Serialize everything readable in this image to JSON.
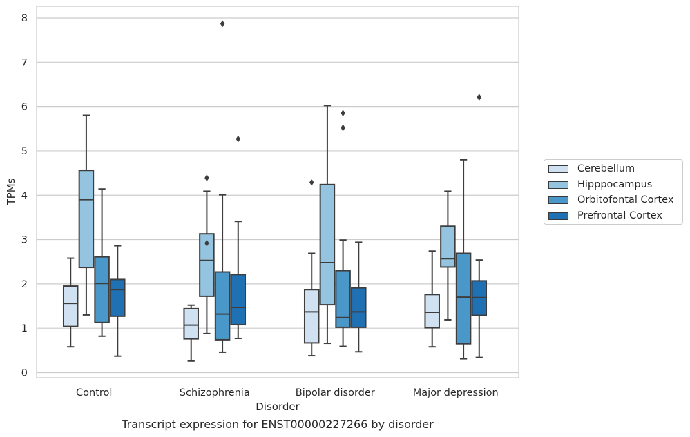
{
  "caption": "Transcript expression for ENST00000227266 by disorder",
  "chart_data": {
    "type": "box",
    "xlabel": "Disorder",
    "ylabel": "TPMs",
    "ylim": [
      -0.1,
      8.25
    ],
    "yticks": [
      0,
      1,
      2,
      3,
      4,
      5,
      6,
      7,
      8
    ],
    "grid": "horizontal",
    "legend_position": "right",
    "categories": [
      "Control",
      "Schizophrenia",
      "Bipolar disorder",
      "Major depression"
    ],
    "series": [
      {
        "name": "Cerebellum",
        "color": "#d0e1f2",
        "boxes": [
          {
            "whisker_low": 0.58,
            "q1": 1.04,
            "median": 1.56,
            "q3": 1.95,
            "whisker_high": 2.58,
            "outliers": []
          },
          {
            "whisker_low": 0.26,
            "q1": 0.76,
            "median": 1.07,
            "q3": 1.44,
            "whisker_high": 1.52,
            "outliers": []
          },
          {
            "whisker_low": 0.38,
            "q1": 0.67,
            "median": 1.37,
            "q3": 1.87,
            "whisker_high": 2.69,
            "outliers": [
              4.29
            ]
          },
          {
            "whisker_low": 0.58,
            "q1": 1.01,
            "median": 1.36,
            "q3": 1.76,
            "whisker_high": 2.74,
            "outliers": []
          }
        ]
      },
      {
        "name": "Hipppocampus",
        "color": "#94c4df",
        "boxes": [
          {
            "whisker_low": 1.3,
            "q1": 2.37,
            "median": 3.9,
            "q3": 4.56,
            "whisker_high": 5.8,
            "outliers": []
          },
          {
            "whisker_low": 0.88,
            "q1": 1.72,
            "median": 2.53,
            "q3": 3.13,
            "whisker_high": 4.09,
            "outliers": [
              2.92,
              4.39
            ]
          },
          {
            "whisker_low": 0.66,
            "q1": 1.53,
            "median": 2.48,
            "q3": 4.24,
            "whisker_high": 6.02,
            "outliers": []
          },
          {
            "whisker_low": 1.19,
            "q1": 2.38,
            "median": 2.57,
            "q3": 3.3,
            "whisker_high": 4.09,
            "outliers": []
          }
        ]
      },
      {
        "name": "Orbitofontal Cortex",
        "color": "#4a98c9",
        "boxes": [
          {
            "whisker_low": 0.82,
            "q1": 1.13,
            "median": 2.01,
            "q3": 2.61,
            "whisker_high": 4.14,
            "outliers": []
          },
          {
            "whisker_low": 0.46,
            "q1": 0.74,
            "median": 1.32,
            "q3": 2.27,
            "whisker_high": 4.01,
            "outliers": [
              7.87
            ]
          },
          {
            "whisker_low": 0.59,
            "q1": 1.02,
            "median": 1.24,
            "q3": 2.3,
            "whisker_high": 2.99,
            "outliers": [
              5.52,
              5.85
            ]
          },
          {
            "whisker_low": 0.31,
            "q1": 0.65,
            "median": 1.7,
            "q3": 2.69,
            "whisker_high": 4.8,
            "outliers": []
          }
        ]
      },
      {
        "name": "Prefrontal Cortex",
        "color": "#2070b4",
        "boxes": [
          {
            "whisker_low": 0.37,
            "q1": 1.27,
            "median": 1.87,
            "q3": 2.1,
            "whisker_high": 2.86,
            "outliers": []
          },
          {
            "whisker_low": 0.77,
            "q1": 1.08,
            "median": 1.47,
            "q3": 2.21,
            "whisker_high": 3.41,
            "outliers": [
              5.27
            ]
          },
          {
            "whisker_low": 0.47,
            "q1": 1.02,
            "median": 1.37,
            "q3": 1.91,
            "whisker_high": 2.94,
            "outliers": []
          },
          {
            "whisker_low": 0.34,
            "q1": 1.29,
            "median": 1.69,
            "q3": 2.07,
            "whisker_high": 2.54,
            "outliers": [
              6.21
            ]
          }
        ]
      }
    ]
  }
}
